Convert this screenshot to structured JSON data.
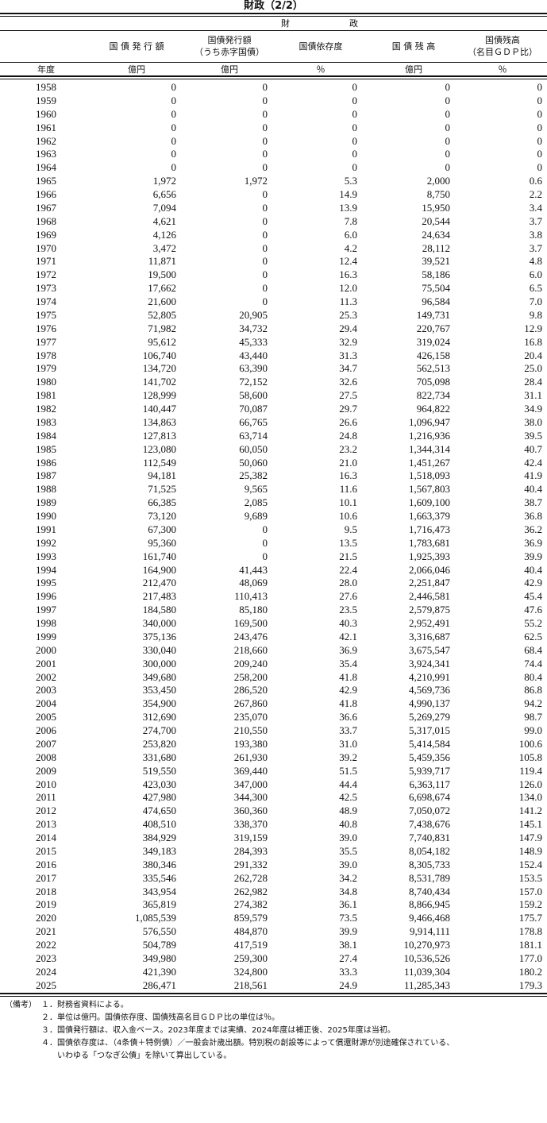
{
  "title": "財政（2/2）",
  "group_header": [
    "財",
    "政"
  ],
  "columns": [
    "国 債 発 行 額",
    "国債発行額\n（うち赤字国債）",
    "国債依存度",
    "国 債 残 高",
    "国債残高\n（名目ＧＤＰ比）"
  ],
  "units": [
    "年度",
    "億円",
    "億円",
    "％",
    "億円",
    "％"
  ],
  "rows": [
    [
      "1958",
      "0",
      "0",
      "0",
      "0",
      "0"
    ],
    [
      "1959",
      "0",
      "0",
      "0",
      "0",
      "0"
    ],
    [
      "1960",
      "0",
      "0",
      "0",
      "0",
      "0"
    ],
    [
      "1961",
      "0",
      "0",
      "0",
      "0",
      "0"
    ],
    [
      "1962",
      "0",
      "0",
      "0",
      "0",
      "0"
    ],
    [
      "1963",
      "0",
      "0",
      "0",
      "0",
      "0"
    ],
    [
      "1964",
      "0",
      "0",
      "0",
      "0",
      "0"
    ],
    [
      "1965",
      "1,972",
      "1,972",
      "5.3",
      "2,000",
      "0.6"
    ],
    [
      "1966",
      "6,656",
      "0",
      "14.9",
      "8,750",
      "2.2"
    ],
    [
      "1967",
      "7,094",
      "0",
      "13.9",
      "15,950",
      "3.4"
    ],
    [
      "1968",
      "4,621",
      "0",
      "7.8",
      "20,544",
      "3.7"
    ],
    [
      "1969",
      "4,126",
      "0",
      "6.0",
      "24,634",
      "3.8"
    ],
    [
      "1970",
      "3,472",
      "0",
      "4.2",
      "28,112",
      "3.7"
    ],
    [
      "1971",
      "11,871",
      "0",
      "12.4",
      "39,521",
      "4.8"
    ],
    [
      "1972",
      "19,500",
      "0",
      "16.3",
      "58,186",
      "6.0"
    ],
    [
      "1973",
      "17,662",
      "0",
      "12.0",
      "75,504",
      "6.5"
    ],
    [
      "1974",
      "21,600",
      "0",
      "11.3",
      "96,584",
      "7.0"
    ],
    [
      "1975",
      "52,805",
      "20,905",
      "25.3",
      "149,731",
      "9.8"
    ],
    [
      "1976",
      "71,982",
      "34,732",
      "29.4",
      "220,767",
      "12.9"
    ],
    [
      "1977",
      "95,612",
      "45,333",
      "32.9",
      "319,024",
      "16.8"
    ],
    [
      "1978",
      "106,740",
      "43,440",
      "31.3",
      "426,158",
      "20.4"
    ],
    [
      "1979",
      "134,720",
      "63,390",
      "34.7",
      "562,513",
      "25.0"
    ],
    [
      "1980",
      "141,702",
      "72,152",
      "32.6",
      "705,098",
      "28.4"
    ],
    [
      "1981",
      "128,999",
      "58,600",
      "27.5",
      "822,734",
      "31.1"
    ],
    [
      "1982",
      "140,447",
      "70,087",
      "29.7",
      "964,822",
      "34.9"
    ],
    [
      "1983",
      "134,863",
      "66,765",
      "26.6",
      "1,096,947",
      "38.0"
    ],
    [
      "1984",
      "127,813",
      "63,714",
      "24.8",
      "1,216,936",
      "39.5"
    ],
    [
      "1985",
      "123,080",
      "60,050",
      "23.2",
      "1,344,314",
      "40.7"
    ],
    [
      "1986",
      "112,549",
      "50,060",
      "21.0",
      "1,451,267",
      "42.4"
    ],
    [
      "1987",
      "94,181",
      "25,382",
      "16.3",
      "1,518,093",
      "41.9"
    ],
    [
      "1988",
      "71,525",
      "9,565",
      "11.6",
      "1,567,803",
      "40.4"
    ],
    [
      "1989",
      "66,385",
      "2,085",
      "10.1",
      "1,609,100",
      "38.7"
    ],
    [
      "1990",
      "73,120",
      "9,689",
      "10.6",
      "1,663,379",
      "36.8"
    ],
    [
      "1991",
      "67,300",
      "0",
      "9.5",
      "1,716,473",
      "36.2"
    ],
    [
      "1992",
      "95,360",
      "0",
      "13.5",
      "1,783,681",
      "36.9"
    ],
    [
      "1993",
      "161,740",
      "0",
      "21.5",
      "1,925,393",
      "39.9"
    ],
    [
      "1994",
      "164,900",
      "41,443",
      "22.4",
      "2,066,046",
      "40.4"
    ],
    [
      "1995",
      "212,470",
      "48,069",
      "28.0",
      "2,251,847",
      "42.9"
    ],
    [
      "1996",
      "217,483",
      "110,413",
      "27.6",
      "2,446,581",
      "45.4"
    ],
    [
      "1997",
      "184,580",
      "85,180",
      "23.5",
      "2,579,875",
      "47.6"
    ],
    [
      "1998",
      "340,000",
      "169,500",
      "40.3",
      "2,952,491",
      "55.2"
    ],
    [
      "1999",
      "375,136",
      "243,476",
      "42.1",
      "3,316,687",
      "62.5"
    ],
    [
      "2000",
      "330,040",
      "218,660",
      "36.9",
      "3,675,547",
      "68.4"
    ],
    [
      "2001",
      "300,000",
      "209,240",
      "35.4",
      "3,924,341",
      "74.4"
    ],
    [
      "2002",
      "349,680",
      "258,200",
      "41.8",
      "4,210,991",
      "80.4"
    ],
    [
      "2003",
      "353,450",
      "286,520",
      "42.9",
      "4,569,736",
      "86.8"
    ],
    [
      "2004",
      "354,900",
      "267,860",
      "41.8",
      "4,990,137",
      "94.2"
    ],
    [
      "2005",
      "312,690",
      "235,070",
      "36.6",
      "5,269,279",
      "98.7"
    ],
    [
      "2006",
      "274,700",
      "210,550",
      "33.7",
      "5,317,015",
      "99.0"
    ],
    [
      "2007",
      "253,820",
      "193,380",
      "31.0",
      "5,414,584",
      "100.6"
    ],
    [
      "2008",
      "331,680",
      "261,930",
      "39.2",
      "5,459,356",
      "105.8"
    ],
    [
      "2009",
      "519,550",
      "369,440",
      "51.5",
      "5,939,717",
      "119.4"
    ],
    [
      "2010",
      "423,030",
      "347,000",
      "44.4",
      "6,363,117",
      "126.0"
    ],
    [
      "2011",
      "427,980",
      "344,300",
      "42.5",
      "6,698,674",
      "134.0"
    ],
    [
      "2012",
      "474,650",
      "360,360",
      "48.9",
      "7,050,072",
      "141.2"
    ],
    [
      "2013",
      "408,510",
      "338,370",
      "40.8",
      "7,438,676",
      "145.1"
    ],
    [
      "2014",
      "384,929",
      "319,159",
      "39.0",
      "7,740,831",
      "147.9"
    ],
    [
      "2015",
      "349,183",
      "284,393",
      "35.5",
      "8,054,182",
      "148.9"
    ],
    [
      "2016",
      "380,346",
      "291,332",
      "39.0",
      "8,305,733",
      "152.4"
    ],
    [
      "2017",
      "335,546",
      "262,728",
      "34.2",
      "8,531,789",
      "153.5"
    ],
    [
      "2018",
      "343,954",
      "262,982",
      "34.8",
      "8,740,434",
      "157.0"
    ],
    [
      "2019",
      "365,819",
      "274,382",
      "36.1",
      "8,866,945",
      "159.2"
    ],
    [
      "2020",
      "1,085,539",
      "859,579",
      "73.5",
      "9,466,468",
      "175.7"
    ],
    [
      "2021",
      "576,550",
      "484,870",
      "39.9",
      "9,914,111",
      "178.8"
    ],
    [
      "2022",
      "504,789",
      "417,519",
      "38.1",
      "10,270,973",
      "181.1"
    ],
    [
      "2023",
      "349,980",
      "259,300",
      "27.4",
      "10,536,526",
      "177.0"
    ],
    [
      "2024",
      "421,390",
      "324,800",
      "33.3",
      "11,039,304",
      "180.2"
    ],
    [
      "2025",
      "286,471",
      "218,561",
      "24.9",
      "11,285,343",
      "179.3"
    ]
  ],
  "notes": {
    "label": "（備考）",
    "items": [
      "１．財務省資料による。",
      "２．単位は億円。国債依存度、国債残高名目ＧＤＰ比の単位は％。",
      "３．国債発行額は、収入金ベース。2023年度までは実績、2024年度は補正後、2025年度は当初。",
      "４．国債依存度は、（4条債＋特例債）／一般会計歳出額。特別税の創設等によって償還財源が別途確保されている、",
      "　　いわゆる「つなぎ公債」を除いて算出している。"
    ]
  }
}
